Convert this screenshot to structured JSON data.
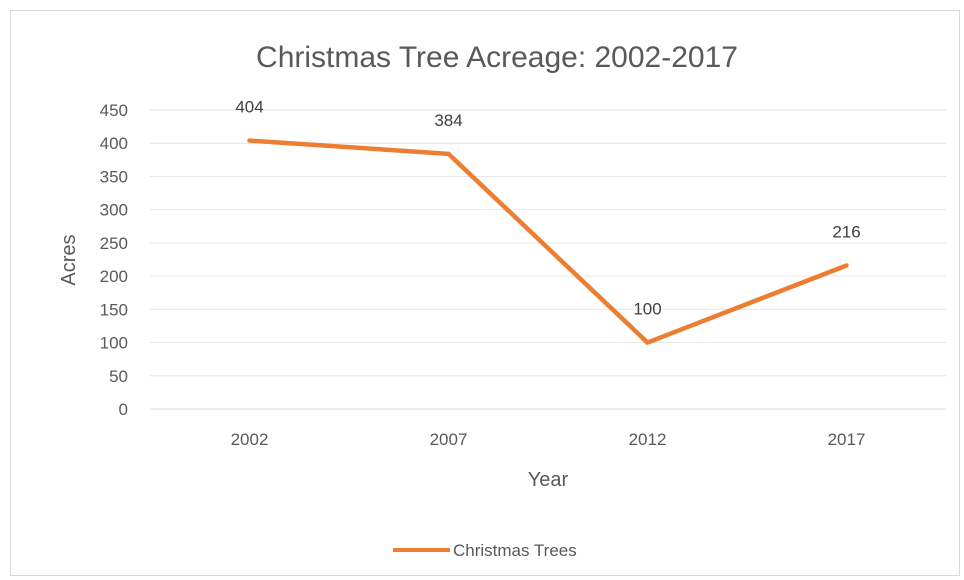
{
  "chart_data": {
    "type": "line",
    "title": "Christmas Tree Acreage: 2002-2017",
    "xlabel": "Year",
    "ylabel": "Acres",
    "categories": [
      "2002",
      "2007",
      "2012",
      "2017"
    ],
    "series": [
      {
        "name": "Christmas Trees",
        "values": [
          404,
          384,
          100,
          216
        ],
        "color": "#ED7D31"
      }
    ],
    "ylim": [
      0,
      450
    ],
    "yticks": [
      0,
      50,
      100,
      150,
      200,
      250,
      300,
      350,
      400,
      450
    ],
    "grid": true,
    "data_labels": true,
    "legend": "bottom"
  }
}
